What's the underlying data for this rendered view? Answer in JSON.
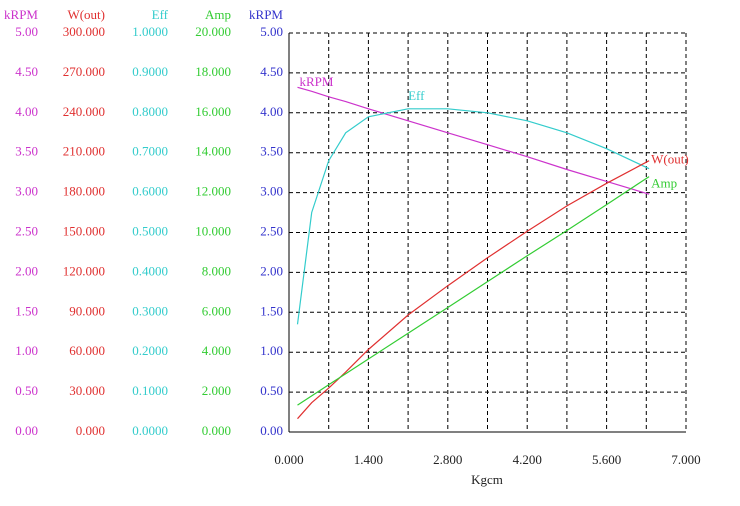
{
  "chart_data": {
    "type": "line",
    "x_label": "Kgcm",
    "grid": true,
    "xlim": [
      0,
      7
    ],
    "xticks": [
      {
        "value": 0,
        "label": "0.000"
      },
      {
        "value": 1.4,
        "label": "1.400"
      },
      {
        "value": 2.8,
        "label": "2.800"
      },
      {
        "value": 4.2,
        "label": "4.200"
      },
      {
        "value": 5.6,
        "label": "5.600"
      },
      {
        "value": 7,
        "label": "7.000"
      }
    ],
    "axes": [
      {
        "title": "kRPM",
        "color": "#cc33cc",
        "ylim": [
          0,
          5
        ],
        "yticks": [
          {
            "value": 0,
            "label": "0.00"
          },
          {
            "value": 0.5,
            "label": "0.50"
          },
          {
            "value": 1,
            "label": "1.00"
          },
          {
            "value": 1.5,
            "label": "1.50"
          },
          {
            "value": 2,
            "label": "2.00"
          },
          {
            "value": 2.5,
            "label": "2.50"
          },
          {
            "value": 3,
            "label": "3.00"
          },
          {
            "value": 3.5,
            "label": "3.50"
          },
          {
            "value": 4,
            "label": "4.00"
          },
          {
            "value": 4.5,
            "label": "4.50"
          },
          {
            "value": 5,
            "label": "5.00"
          }
        ]
      },
      {
        "title": "W(out)",
        "color": "#e03030",
        "ylim": [
          0,
          300
        ],
        "yticks": [
          {
            "value": 0,
            "label": "0.000"
          },
          {
            "value": 30,
            "label": "30.000"
          },
          {
            "value": 60,
            "label": "60.000"
          },
          {
            "value": 90,
            "label": "90.000"
          },
          {
            "value": 120,
            "label": "120.000"
          },
          {
            "value": 150,
            "label": "150.000"
          },
          {
            "value": 180,
            "label": "180.000"
          },
          {
            "value": 210,
            "label": "210.000"
          },
          {
            "value": 240,
            "label": "240.000"
          },
          {
            "value": 270,
            "label": "270.000"
          },
          {
            "value": 300,
            "label": "300.000"
          }
        ]
      },
      {
        "title": "Eff",
        "color": "#33cccc",
        "ylim": [
          0,
          1
        ],
        "yticks": [
          {
            "value": 0,
            "label": "0.0000"
          },
          {
            "value": 0.1,
            "label": "0.1000"
          },
          {
            "value": 0.2,
            "label": "0.2000"
          },
          {
            "value": 0.3,
            "label": "0.3000"
          },
          {
            "value": 0.4,
            "label": "0.4000"
          },
          {
            "value": 0.5,
            "label": "0.5000"
          },
          {
            "value": 0.6,
            "label": "0.6000"
          },
          {
            "value": 0.7,
            "label": "0.7000"
          },
          {
            "value": 0.8,
            "label": "0.8000"
          },
          {
            "value": 0.9,
            "label": "0.9000"
          },
          {
            "value": 1,
            "label": "1.0000"
          }
        ]
      },
      {
        "title": "Amp",
        "color": "#33cc33",
        "ylim": [
          0,
          20
        ],
        "yticks": [
          {
            "value": 0,
            "label": "0.000"
          },
          {
            "value": 2,
            "label": "2.000"
          },
          {
            "value": 4,
            "label": "4.000"
          },
          {
            "value": 6,
            "label": "6.000"
          },
          {
            "value": 8,
            "label": "8.000"
          },
          {
            "value": 10,
            "label": "10.000"
          },
          {
            "value": 12,
            "label": "12.000"
          },
          {
            "value": 14,
            "label": "14.000"
          },
          {
            "value": 16,
            "label": "16.000"
          },
          {
            "value": 18,
            "label": "18.000"
          },
          {
            "value": 20,
            "label": "20.000"
          }
        ]
      },
      {
        "title": "kRPM",
        "color": "#3333cc",
        "ylim": [
          0,
          5
        ],
        "yticks": [
          {
            "value": 0,
            "label": "0.00"
          },
          {
            "value": 0.5,
            "label": "0.50"
          },
          {
            "value": 1,
            "label": "1.00"
          },
          {
            "value": 1.5,
            "label": "1.50"
          },
          {
            "value": 2,
            "label": "2.00"
          },
          {
            "value": 2.5,
            "label": "2.50"
          },
          {
            "value": 3,
            "label": "3.00"
          },
          {
            "value": 3.5,
            "label": "3.50"
          },
          {
            "value": 4,
            "label": "4.00"
          },
          {
            "value": 4.5,
            "label": "4.50"
          },
          {
            "value": 5,
            "label": "5.00"
          }
        ]
      }
    ],
    "x": [
      0.15,
      0.4,
      0.7,
      1.0,
      1.4,
      2.1,
      2.8,
      3.5,
      4.2,
      4.9,
      5.6,
      6.35
    ],
    "series": [
      {
        "name": "kRPM",
        "color": "#cc33cc",
        "axis": 0,
        "values": [
          4.32,
          4.27,
          4.2,
          4.14,
          4.05,
          3.9,
          3.75,
          3.6,
          3.45,
          3.29,
          3.14,
          2.98
        ]
      },
      {
        "name": "Eff",
        "color": "#33cccc",
        "axis": 2,
        "values": [
          0.27,
          0.55,
          0.68,
          0.75,
          0.79,
          0.81,
          0.81,
          0.8,
          0.78,
          0.75,
          0.71,
          0.66
        ]
      },
      {
        "name": "W(out)",
        "color": "#e03030",
        "axis": 1,
        "values": [
          10,
          22,
          33,
          45,
          62,
          88,
          110,
          131,
          151,
          170,
          187,
          204
        ]
      },
      {
        "name": "Amp",
        "color": "#33cc33",
        "axis": 3,
        "values": [
          1.35,
          1.81,
          2.37,
          2.92,
          3.66,
          4.95,
          6.24,
          7.54,
          8.83,
          10.1,
          11.4,
          12.8
        ]
      }
    ]
  }
}
